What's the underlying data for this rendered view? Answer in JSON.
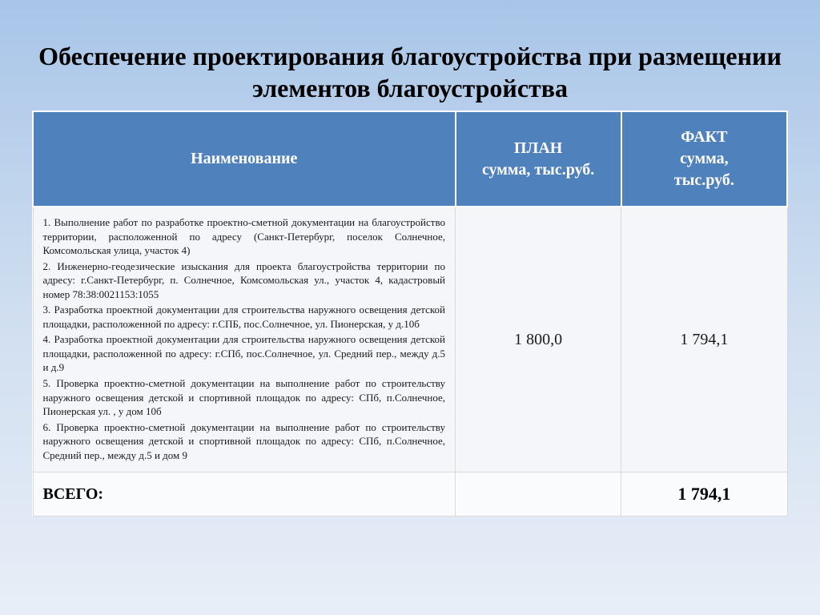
{
  "title": "Обеспечение проектирования благоустройства при размещении элементов благоустройства",
  "table": {
    "columns": [
      {
        "label": "Наименование",
        "width_pct": 56,
        "align": "justify"
      },
      {
        "label": "ПЛАН\nсумма, тыс.руб.",
        "width_pct": 22,
        "align": "center"
      },
      {
        "label": "ФАКТ\nсумма,\nтыс.руб.",
        "width_pct": 22,
        "align": "center"
      }
    ],
    "header_bg": "#4f81bd",
    "header_text_color": "#ffffff",
    "header_fontsize": 20,
    "row_bg": "#f4f6f9",
    "border_color": "#d9d9d9",
    "rows": [
      {
        "items": [
          "1. Выполнение работ по разработке проектно-сметной документации на благоустройство территории, расположенной по адресу (Санкт-Петербург, поселок Солнечное, Комсомольская улица, участок 4)",
          "2. Инженерно-геодезические изыскания для проекта благоустройства территории по адресу: г.Санкт-Петербург, п. Солнечное, Комсомольская ул., участок 4, кадастровый номер 78:38:0021153:1055",
          "3. Разработка проектной документации для строительства наружного освещения детской площадки, расположенной по адресу: г.СПБ, пос.Солнечное, ул. Пионерская, у д.10б",
          "4. Разработка проектной документации для строительства наружного освещения детской площадки, расположенной по адресу: г.СПб, пос.Солнечное, ул. Средний пер., между д.5 и д.9",
          "5. Проверка проектно-сметной документации на выполнение работ по строительству наружного освещения детской и спортивной площадок по адресу: СПб, п.Солнечное, Пионерская ул. , у дом 10б",
          "6. Проверка проектно-сметной документации на выполнение работ по строительству наружного освещения детской и спортивной площадок по адресу: СПб, п.Солнечное, Средний пер., между д.5 и дом 9"
        ],
        "plan": "1 800,0",
        "fact": "1 794,1"
      }
    ],
    "total": {
      "label": "ВСЕГО:",
      "plan": "",
      "fact": "1 794,1"
    },
    "desc_fontsize": 13,
    "num_fontsize": 20,
    "total_fontsize": 22
  },
  "background_gradient": [
    "#a8c5e8",
    "#cfdef0",
    "#e8eef7"
  ],
  "title_fontsize": 32,
  "title_color": "#000000",
  "font_family": "Times New Roman"
}
